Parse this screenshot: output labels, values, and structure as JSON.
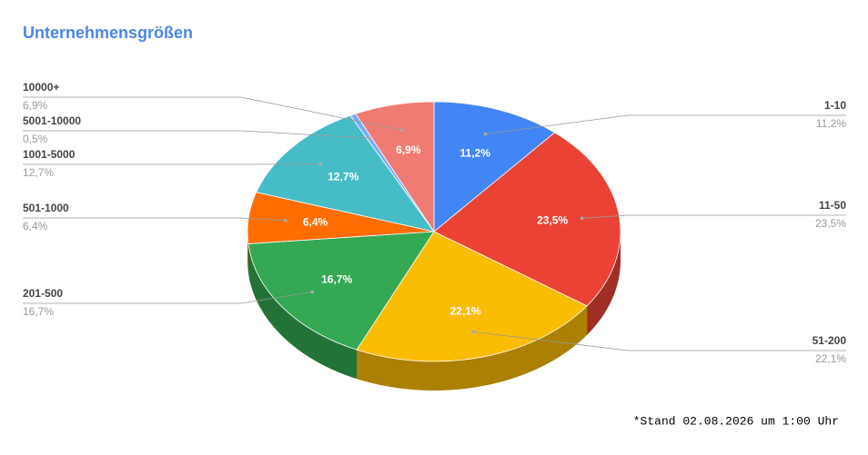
{
  "chart_data": {
    "type": "pie",
    "title": "Unternehmensgrößen",
    "categories": [
      "1-10",
      "11-50",
      "51-200",
      "201-500",
      "501-1000",
      "1001-5000",
      "5001-10000",
      "10000+"
    ],
    "values": [
      11.2,
      23.5,
      22.1,
      16.7,
      6.4,
      12.7,
      0.5,
      6.9
    ],
    "value_labels": [
      "11,2%",
      "23,5%",
      "22,1%",
      "16,7%",
      "6,4%",
      "12,7%",
      "0,5%",
      "6,9%"
    ],
    "colors": [
      "#4285f4",
      "#ea4335",
      "#fbbc04",
      "#34a853",
      "#ff6d01",
      "#46bdc6",
      "#7baaf7",
      "#f07b72"
    ],
    "footnote": "*Stand 02.08.2026 um 1:00 Uhr"
  }
}
